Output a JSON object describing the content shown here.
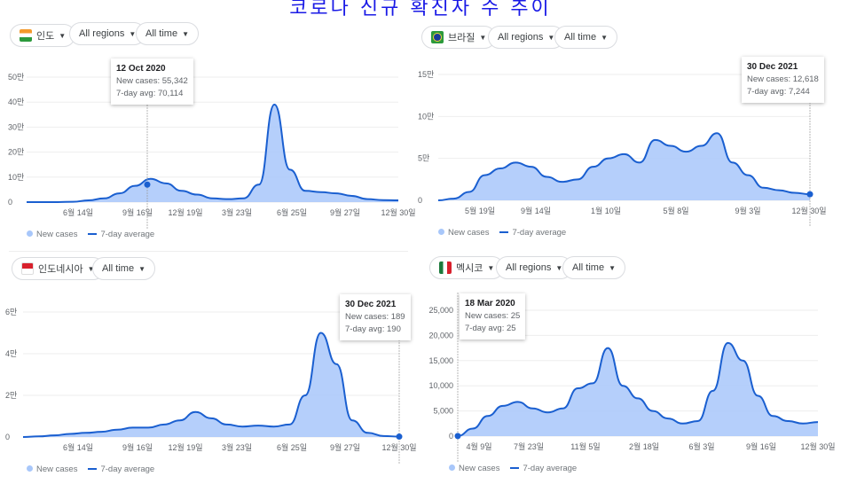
{
  "title": "코로나 신규 확진자 수 추이",
  "colors": {
    "bars": "#a8c7fa",
    "line": "#1a5fd0",
    "title": "#1a1ae6"
  },
  "legend": {
    "new_cases": "New cases",
    "avg": "7-day average"
  },
  "panels": [
    {
      "country": "인도",
      "flag": "india-flag-icon",
      "region": "All regions",
      "time": "All time",
      "tooltip": {
        "date": "12 Oct 2020",
        "new_cases": "New cases: 55,342",
        "avg": "7-day avg: 70,114"
      }
    },
    {
      "country": "브라질",
      "flag": "brazil-flag-icon",
      "region": "All regions",
      "time": "All time",
      "tooltip": {
        "date": "30 Dec 2021",
        "new_cases": "New cases: 12,618",
        "avg": "7-day avg: 7,244"
      }
    },
    {
      "country": "인도네시아",
      "flag": "indonesia-flag-icon",
      "time": "All time",
      "tooltip": {
        "date": "30 Dec 2021",
        "new_cases": "New cases: 189",
        "avg": "7-day avg: 190"
      }
    },
    {
      "country": "멕시코",
      "flag": "mexico-flag-icon",
      "region": "All regions",
      "time": "All time",
      "tooltip": {
        "date": "18 Mar 2020",
        "new_cases": "New cases: 25",
        "avg": "7-day avg: 25"
      }
    }
  ],
  "chart_data": [
    {
      "type": "area",
      "title": "인도",
      "ylim": [
        0,
        500000
      ],
      "yticks": [
        0,
        100000,
        200000,
        300000,
        400000,
        500000
      ],
      "ytick_labels": [
        "0",
        "10만",
        "20만",
        "30만",
        "40만",
        "50만"
      ],
      "xtick_labels": [
        "6월 14일",
        "9월 16일",
        "12월 19일",
        "3월 23일",
        "6월 25일",
        "9월 27일",
        "12월 30일"
      ],
      "series": [
        {
          "name": "7-day average",
          "values": [
            0,
            0,
            200,
            1500,
            7000,
            15000,
            35000,
            65000,
            93000,
            75000,
            45000,
            30000,
            15000,
            12000,
            15000,
            70000,
            390000,
            130000,
            45000,
            40000,
            35000,
            25000,
            12000,
            8000,
            7000
          ]
        }
      ]
    },
    {
      "type": "area",
      "title": "브라질",
      "ylim": [
        0,
        150000
      ],
      "yticks": [
        0,
        50000,
        100000,
        150000
      ],
      "ytick_labels": [
        "0",
        "5만",
        "10만",
        "15만"
      ],
      "xtick_labels": [
        "5월 19일",
        "9월 14일",
        "1월 10일",
        "5월 8일",
        "9월 3일",
        "12월 30일"
      ],
      "series": [
        {
          "name": "7-day average",
          "values": [
            0,
            2000,
            10000,
            30000,
            38000,
            45000,
            40000,
            28000,
            22000,
            25000,
            40000,
            50000,
            55000,
            45000,
            72000,
            65000,
            58000,
            65000,
            80000,
            45000,
            30000,
            15000,
            12000,
            9000,
            7244
          ]
        }
      ]
    },
    {
      "type": "area",
      "title": "인도네시아",
      "ylim": [
        0,
        60000
      ],
      "yticks": [
        0,
        20000,
        40000,
        60000
      ],
      "ytick_labels": [
        "0",
        "2만",
        "4만",
        "6만"
      ],
      "xtick_labels": [
        "6월 14일",
        "9월 16일",
        "12월 19일",
        "3월 23일",
        "6월 25일",
        "9월 27일",
        "12월 30일"
      ],
      "series": [
        {
          "name": "7-day average",
          "values": [
            0,
            300,
            800,
            1500,
            2000,
            2500,
            3500,
            4500,
            4500,
            6000,
            8000,
            12000,
            9000,
            6000,
            5000,
            5500,
            5000,
            6000,
            20000,
            50000,
            35000,
            8000,
            2000,
            500,
            190
          ]
        }
      ]
    },
    {
      "type": "area",
      "title": "멕시코",
      "ylim": [
        0,
        25000
      ],
      "yticks": [
        0,
        5000,
        10000,
        15000,
        20000,
        25000
      ],
      "ytick_labels": [
        "0",
        "5,000",
        "10,000",
        "15,000",
        "20,000",
        "25,000"
      ],
      "xtick_labels": [
        "4월 9일",
        "7월 23일",
        "11월 5일",
        "2월 18일",
        "6월 3일",
        "9월 16일",
        "12월 30일"
      ],
      "series": [
        {
          "name": "7-day average",
          "values": [
            25,
            1500,
            4000,
            6000,
            6800,
            5500,
            4700,
            5500,
            9500,
            10500,
            17500,
            10000,
            7500,
            5000,
            3500,
            2500,
            3000,
            9000,
            18500,
            15000,
            8000,
            4000,
            3000,
            2500,
            2800
          ]
        }
      ]
    }
  ]
}
